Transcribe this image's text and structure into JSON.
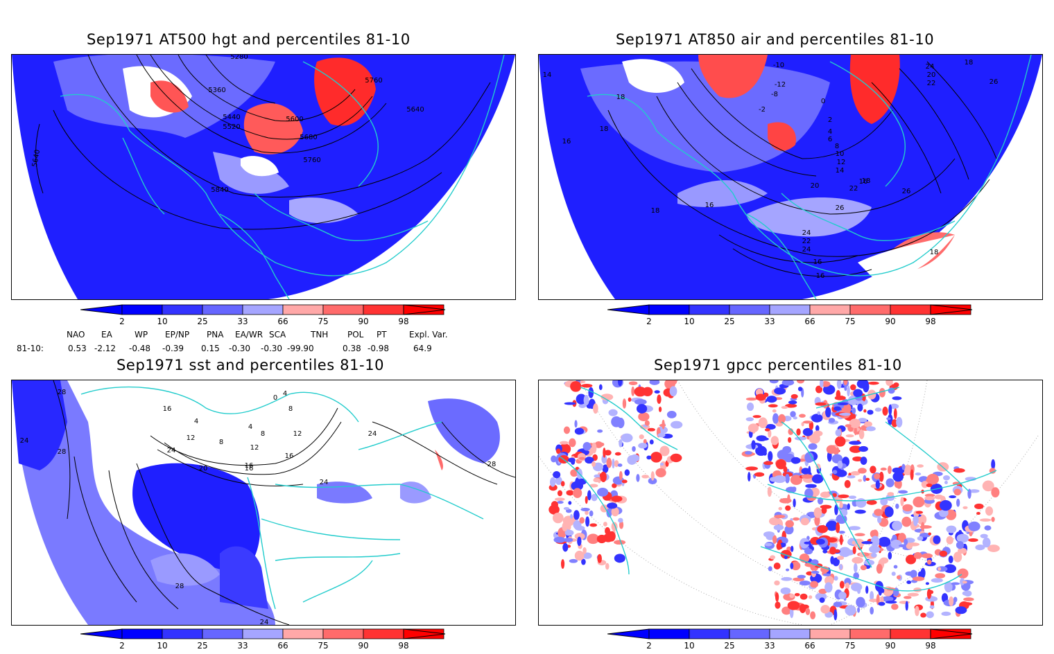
{
  "panels": [
    {
      "title": "Sep1971 AT500 hgt and percentiles 81-10",
      "contour_labels": [
        "5280",
        "5360",
        "5440",
        "5520",
        "5600",
        "5680",
        "5760",
        "5640",
        "5840",
        "5760",
        "5640"
      ]
    },
    {
      "title": "Sep1971 AT850 air and percentiles 81-10",
      "contour_labels": [
        "14",
        "18",
        "18",
        "16",
        "-10",
        "-12",
        "-8",
        "-2",
        "0",
        "2",
        "4",
        "6",
        "8",
        "10",
        "12",
        "14",
        "16",
        "18",
        "20",
        "22",
        "24",
        "26",
        "26",
        "22",
        "24",
        "16",
        "18",
        "16",
        "16",
        "18",
        "20",
        "22",
        "24",
        "26",
        "18"
      ]
    },
    {
      "title": "Sep1971 sst and percentiles 81-10",
      "contour_labels": [
        "28",
        "24",
        "28",
        "16",
        "4",
        "8",
        "12",
        "16",
        "20",
        "24",
        "16",
        "12",
        "8",
        "4",
        "12",
        "16",
        "24",
        "24",
        "28",
        "28",
        "24",
        "8",
        "0",
        "4"
      ]
    },
    {
      "title": "Sep1971 gpcc percentiles 81-10",
      "contour_labels": []
    }
  ],
  "colorbar": {
    "labels": [
      "2",
      "10",
      "25",
      "33",
      "66",
      "75",
      "90",
      "98"
    ],
    "blue_colors": [
      "#0000ff",
      "#3333ff",
      "#6666ff",
      "#a5a5ff"
    ],
    "red_colors": [
      "#ffa8a8",
      "#ff6b6b",
      "#ff3333",
      "#ff0000"
    ]
  },
  "teleconnections": {
    "headers": [
      "NAO",
      "EA",
      "WP",
      "EP/NP",
      "PNA",
      "EA/WR",
      "SCA",
      "TNH",
      "POL",
      "PT",
      "Expl. Var."
    ],
    "row_label": "81-10:",
    "values": [
      "0.53",
      "-2.12",
      "-0.48",
      "-0.39",
      "0.15",
      "-0.30",
      "-0.30",
      "-99.90",
      "0.38",
      "-0.98",
      "64.9"
    ]
  },
  "map_colors": {
    "coast": "#22cccc",
    "contour": "#000000",
    "blue": "#2b2bff",
    "lightblue": "#7a7aff",
    "red": "#ff3333"
  }
}
